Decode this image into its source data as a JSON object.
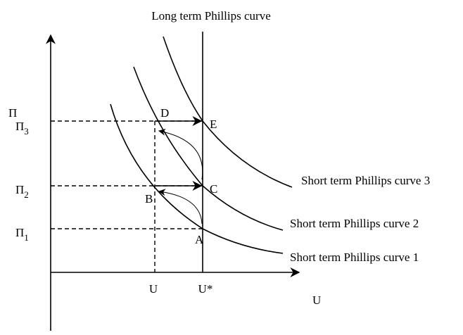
{
  "title": "Long term Phillips curve",
  "y_axis_label": "Π",
  "x_axis_label": "U",
  "y_ticks": [
    {
      "base": "Π",
      "sub": "3"
    },
    {
      "base": "Π",
      "sub": "2"
    },
    {
      "base": "Π",
      "sub": "1"
    }
  ],
  "x_ticks": [
    "U",
    "U*"
  ],
  "points": [
    "D",
    "E",
    "C",
    "B",
    "A"
  ],
  "curves": [
    "Short term Phillips curve 3",
    "Short term Phillips curve 2",
    "Short term Phillips curve 1"
  ]
}
